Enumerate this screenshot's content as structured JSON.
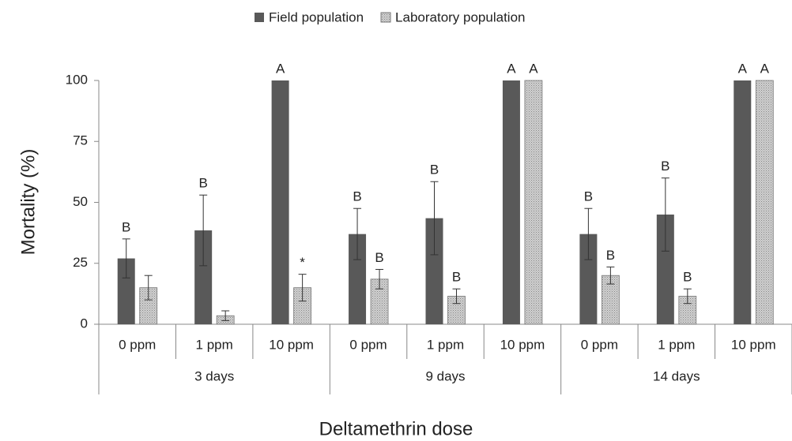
{
  "chart_data": {
    "type": "bar",
    "xlabel": "Deltamethrin dose",
    "ylabel": "Mortality (%)",
    "categories": [
      "0 ppm",
      "1 ppm",
      "10 ppm",
      "0 ppm",
      "1 ppm",
      "10 ppm",
      "0 ppm",
      "1 ppm",
      "10 ppm"
    ],
    "groups": [
      "3 days",
      "9 days",
      "14 days"
    ],
    "series": [
      {
        "name": "Field population",
        "color": "#595959",
        "pattern": "solid",
        "values": [
          27,
          38.5,
          100,
          37,
          43.5,
          100,
          37,
          45,
          100
        ],
        "errors": [
          8,
          14.5,
          0,
          10.5,
          15,
          0,
          10.5,
          15,
          0
        ],
        "labels": [
          "B",
          "B",
          "A",
          "B",
          "B",
          "A",
          "B",
          "B",
          "A"
        ]
      },
      {
        "name": "Laboratory population",
        "color": "#d0d0d0",
        "pattern": "dots",
        "values": [
          15,
          3.5,
          15,
          18.5,
          11.5,
          100,
          20,
          11.5,
          100
        ],
        "errors": [
          5,
          2,
          5.5,
          4,
          3,
          0,
          3.5,
          3,
          0
        ],
        "labels": [
          null,
          null,
          "*",
          "B",
          "B",
          "A",
          "B",
          "B",
          "A"
        ]
      }
    ],
    "ylim": [
      0,
      100
    ],
    "yticks": [
      0,
      25,
      50,
      75,
      100
    ],
    "legend": "top"
  }
}
